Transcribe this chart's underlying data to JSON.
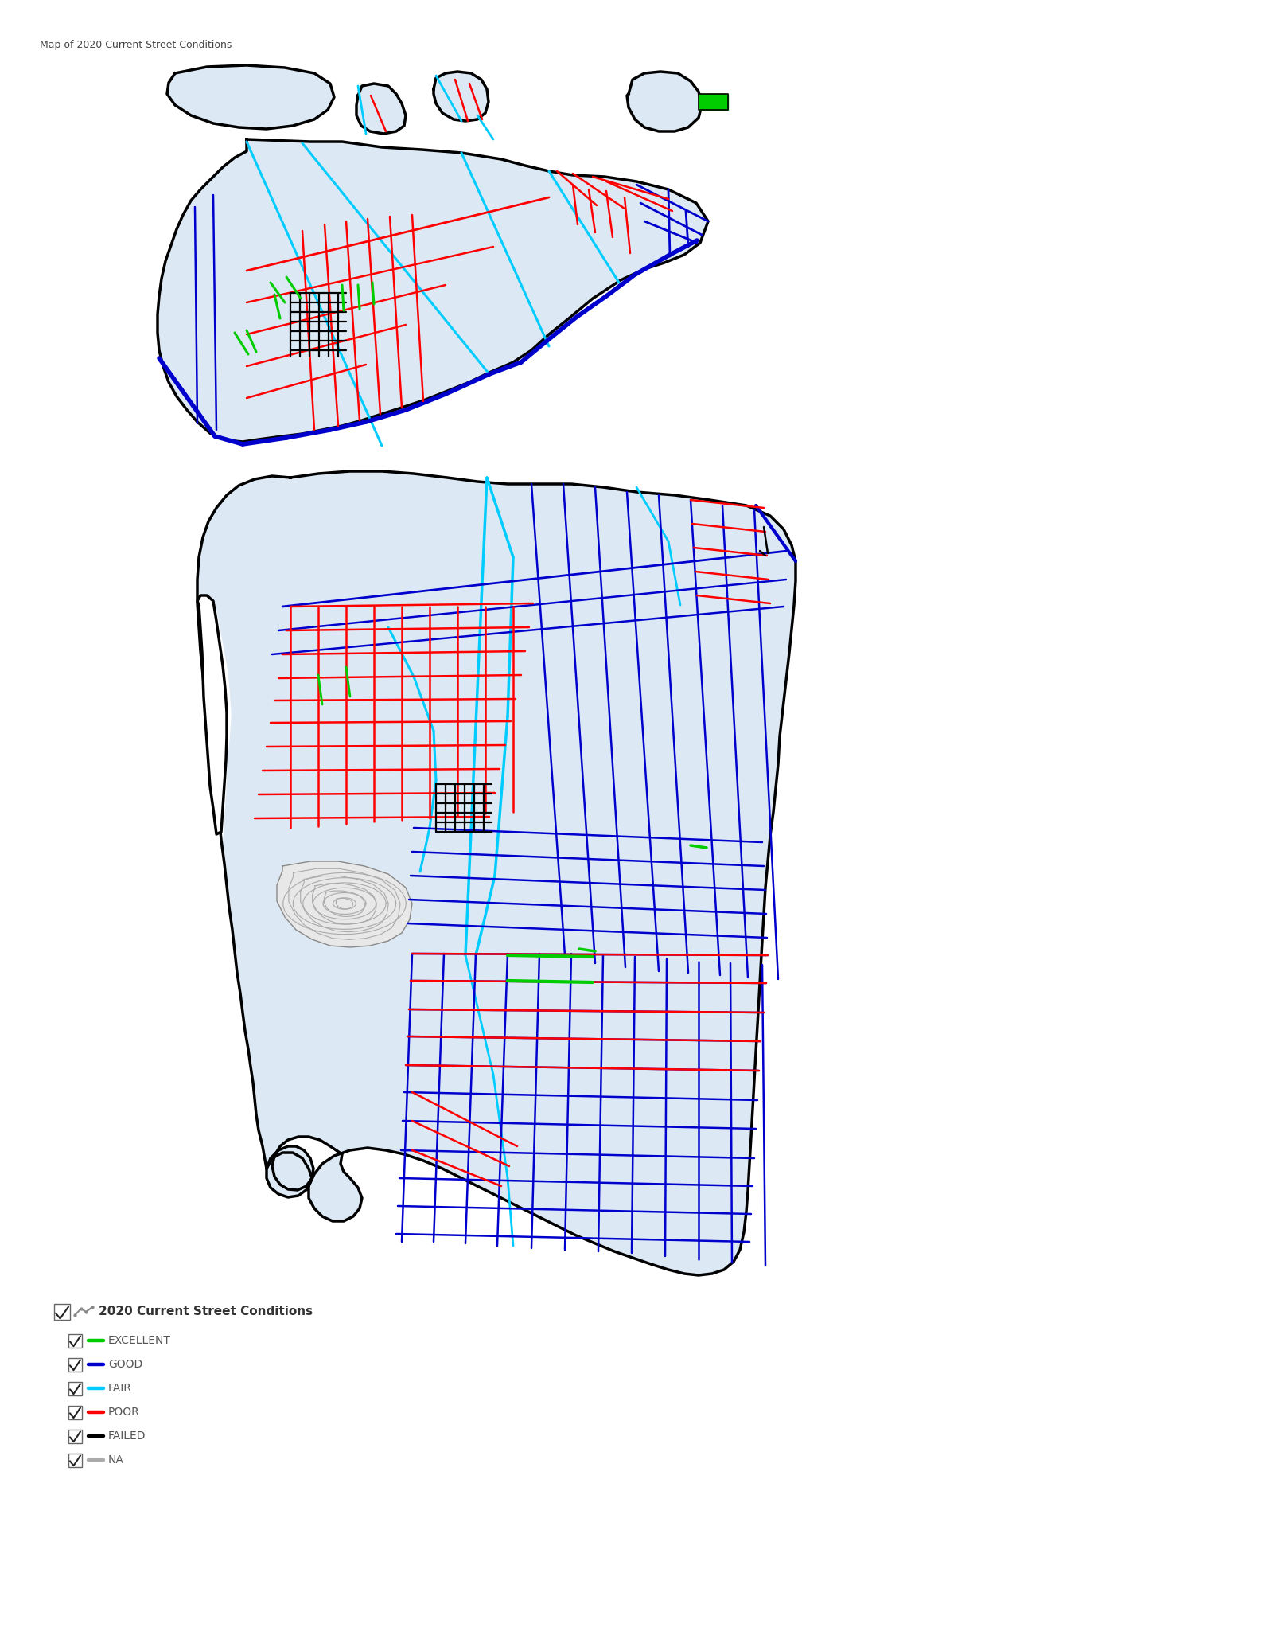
{
  "title": "Map of 2020 Current Street Conditions",
  "title_fontsize": 9,
  "background_color": "#ffffff",
  "legend_title": "2020 Current Street Conditions",
  "legend_categories": [
    "EXCELLENT",
    "GOOD",
    "FAIR",
    "POOR",
    "FAILED",
    "NA"
  ],
  "legend_colors": [
    "#00cc00",
    "#0000cd",
    "#00ccff",
    "#ff0000",
    "#000000",
    "#aaaaaa"
  ],
  "map_fill_color": "#dce9f5",
  "map_border_color": "#000000",
  "figsize": [
    16.0,
    20.69
  ],
  "dpi": 100
}
